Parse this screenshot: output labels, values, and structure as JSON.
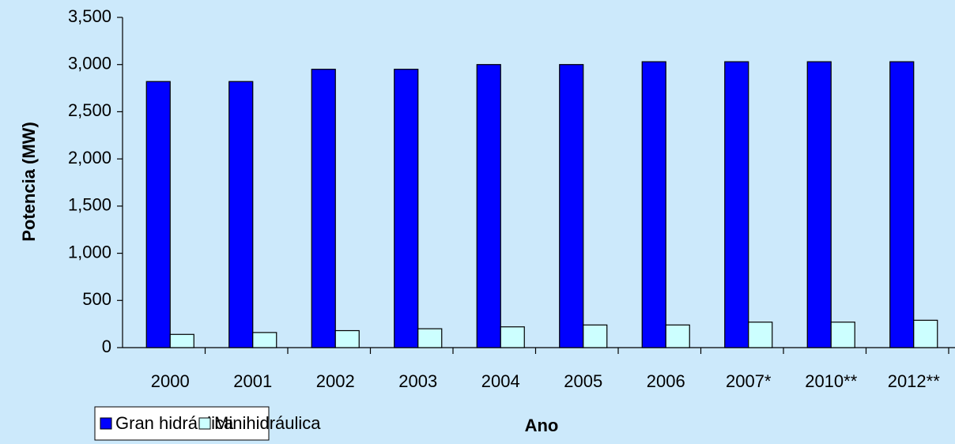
{
  "chart_data": {
    "type": "bar",
    "categories": [
      "2000",
      "2001",
      "2002",
      "2003",
      "2004",
      "2005",
      "2006",
      "2007*",
      "2010**",
      "2012**"
    ],
    "series": [
      {
        "name": "Gran hidráulica",
        "color": "#0000ff",
        "values": [
          2820,
          2820,
          2950,
          2950,
          3000,
          3000,
          3030,
          3030,
          3030,
          3030
        ]
      },
      {
        "name": "Minihidráulica",
        "color": "#ccffff",
        "values": [
          140,
          160,
          180,
          200,
          220,
          240,
          240,
          270,
          270,
          290
        ]
      }
    ],
    "x_label": "Ano",
    "y_label": "Potencia (MW)",
    "ylim": [
      0,
      3500
    ],
    "yticks": [
      0,
      {
        "value": 500,
        "label": "500"
      },
      {
        "value": 1000,
        "label": "1,000"
      },
      {
        "value": 1500,
        "label": "1,500"
      },
      {
        "value": 2000,
        "label": "2,000"
      },
      {
        "value": 2500,
        "label": "2,500"
      },
      {
        "value": 3000,
        "label": "3,000"
      },
      {
        "value": 3500,
        "label": "3,500"
      }
    ],
    "grid": false,
    "legend": "bottom-left"
  }
}
